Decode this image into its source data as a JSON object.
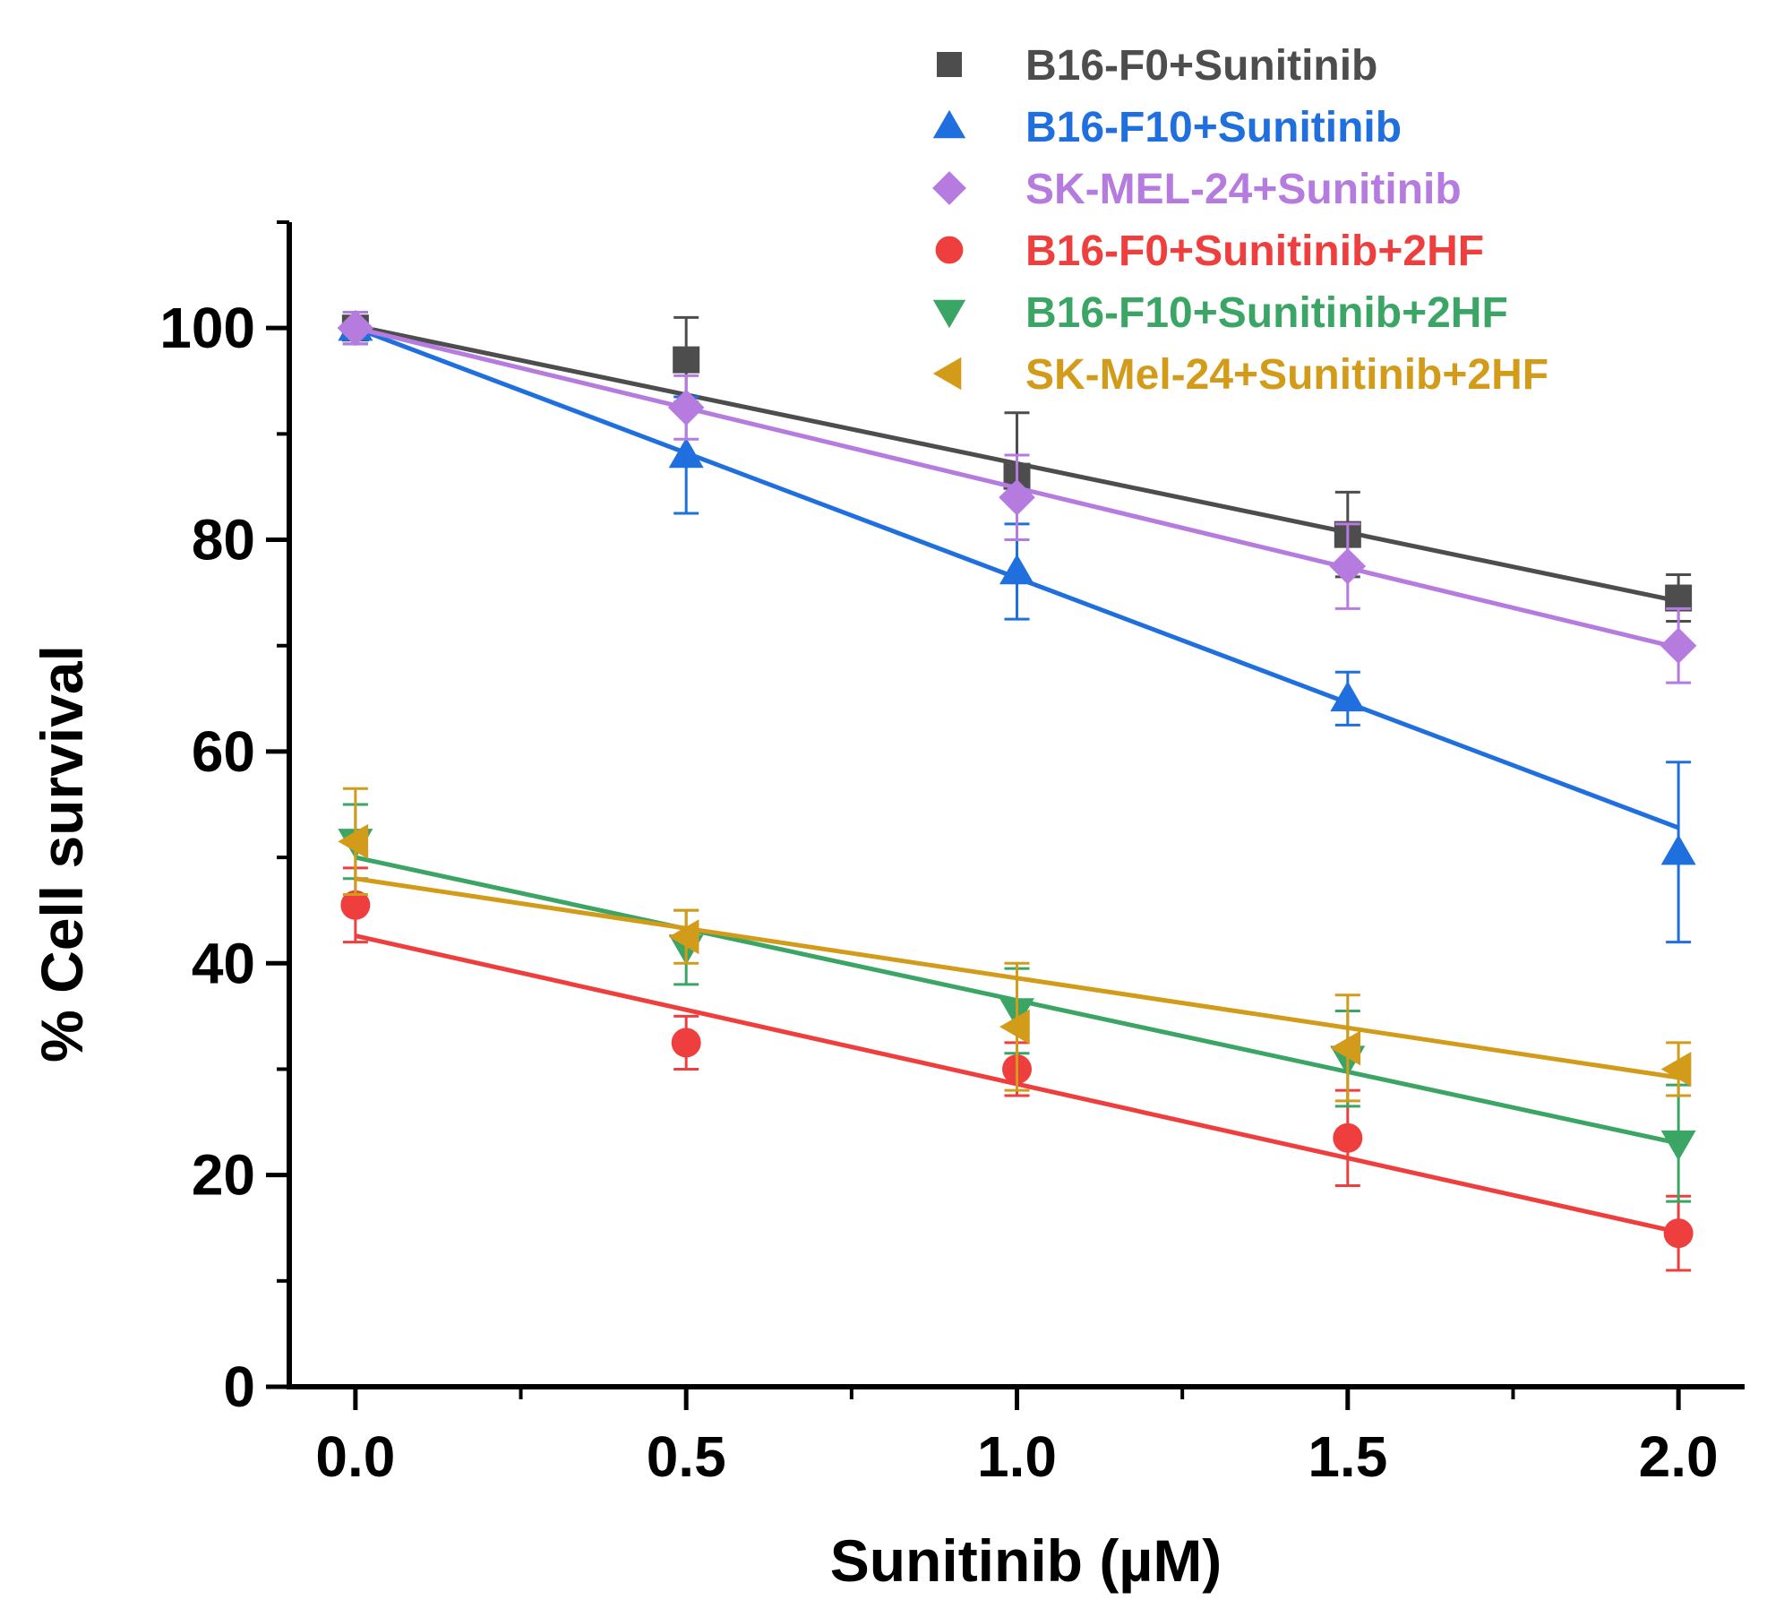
{
  "chart_data": {
    "type": "scatter",
    "title": "",
    "xlabel": "Sunitinib (µM)",
    "ylabel": "% Cell survival",
    "xlim": [
      -0.1,
      2.1
    ],
    "ylim": [
      0,
      110
    ],
    "xticks": [
      0.0,
      0.5,
      1.0,
      1.5,
      2.0
    ],
    "xtick_labels": [
      "0.0",
      "0.5",
      "1.0",
      "1.5",
      "2.0"
    ],
    "yticks": [
      0,
      20,
      40,
      60,
      80,
      100
    ],
    "ytick_labels": [
      "0",
      "20",
      "40",
      "60",
      "80",
      "100"
    ],
    "grid": false,
    "legend_position": "top-right",
    "x": [
      0,
      0.5,
      1.0,
      1.5,
      2.0
    ],
    "series": [
      {
        "name": "B16-F0+Sunitinib",
        "marker": "square",
        "color": "#4d4d4d",
        "values": [
          100,
          97,
          86,
          80.5,
          74.5
        ],
        "errors": [
          1.5,
          4,
          6,
          4,
          2.2
        ],
        "fit": [
          100.2,
          74.2
        ]
      },
      {
        "name": "B16-F10+Sunitinib",
        "marker": "triangle-up",
        "color": "#1f6fdf",
        "values": [
          100,
          88,
          77,
          65,
          50.5
        ],
        "errors": [
          1.5,
          5.5,
          4.5,
          2.5,
          8.5
        ],
        "fit": [
          100,
          52.8
        ]
      },
      {
        "name": "SK-MEL-24+Sunitinib",
        "marker": "diamond",
        "color": "#b57bdf",
        "values": [
          100,
          92.5,
          84,
          77.5,
          70
        ],
        "errors": [
          1.5,
          3,
          4,
          4,
          3.5
        ],
        "fit": [
          100,
          69.8
        ]
      },
      {
        "name": "B16-F0+Sunitinib+2HF",
        "marker": "circle",
        "color": "#ef3e3e",
        "values": [
          45.5,
          32.5,
          30,
          23.5,
          14.5
        ],
        "errors": [
          3.5,
          2.5,
          2.5,
          4.5,
          3.5
        ],
        "fit": [
          42.6,
          14.6
        ]
      },
      {
        "name": "B16-F10+Sunitinib+2HF",
        "marker": "triangle-down",
        "color": "#3aa564",
        "values": [
          51.5,
          41.5,
          35.5,
          31,
          23
        ],
        "errors": [
          3.5,
          3.5,
          4,
          4.5,
          5.5
        ],
        "fit": [
          50.0,
          23.0
        ]
      },
      {
        "name": "SK-Mel-24+Sunitinib+2HF",
        "marker": "triangle-left",
        "color": "#d29c1a",
        "values": [
          51.5,
          42.5,
          34,
          32,
          30
        ],
        "errors": [
          5,
          2.5,
          6,
          5,
          2.5
        ],
        "fit": [
          48.0,
          29.2
        ]
      }
    ]
  }
}
